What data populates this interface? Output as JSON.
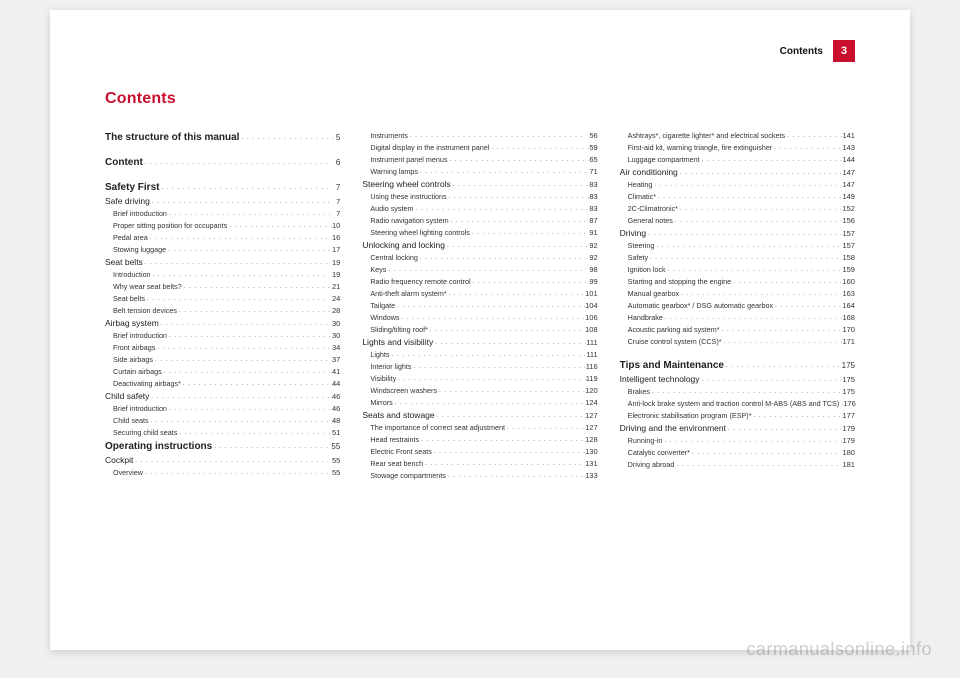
{
  "header": {
    "label": "Contents",
    "page_number": "3"
  },
  "title": "Contents",
  "watermark": "carmanualsonline.info",
  "dotfill": ". . . . . . . . . . . . . . . . . . . . . . . . . . . . . . . . . . . . . . . . . . . . . . . . . . . . . . . . . . . . . . . .",
  "toc": [
    {
      "level": 0,
      "label": "The structure of this manual",
      "page": "5"
    },
    {
      "blank": true
    },
    {
      "level": 0,
      "label": "Content",
      "page": "6"
    },
    {
      "blank": true
    },
    {
      "level": 0,
      "label": "Safety First",
      "page": "7"
    },
    {
      "level": 1,
      "label": "Safe driving",
      "page": "7"
    },
    {
      "level": 2,
      "label": "Brief introduction",
      "page": "7"
    },
    {
      "level": 2,
      "label": "Proper sitting position for occupants",
      "page": "10"
    },
    {
      "level": 2,
      "label": "Pedal area",
      "page": "16"
    },
    {
      "level": 2,
      "label": "Stowing luggage",
      "page": "17"
    },
    {
      "level": 1,
      "label": "Seat belts",
      "page": "19"
    },
    {
      "level": 2,
      "label": "Introduction",
      "page": "19"
    },
    {
      "level": 2,
      "label": "Why wear seat belts?",
      "page": "21"
    },
    {
      "level": 2,
      "label": "Seat belts",
      "page": "24"
    },
    {
      "level": 2,
      "label": "Belt tension devices",
      "page": "28"
    },
    {
      "level": 1,
      "label": "Airbag system",
      "page": "30"
    },
    {
      "level": 2,
      "label": "Brief introduction",
      "page": "30"
    },
    {
      "level": 2,
      "label": "Front airbags",
      "page": "34"
    },
    {
      "level": 2,
      "label": "Side airbags",
      "page": "37"
    },
    {
      "level": 2,
      "label": "Curtain airbags",
      "page": "41"
    },
    {
      "level": 2,
      "label": "Deactivating airbags*",
      "page": "44"
    },
    {
      "level": 1,
      "label": "Child safety",
      "page": "46"
    },
    {
      "level": 2,
      "label": "Brief introduction",
      "page": "46"
    },
    {
      "level": 2,
      "label": "Child seats",
      "page": "48"
    },
    {
      "level": 2,
      "label": "Securing child seats",
      "page": "51"
    },
    {
      "level": 0,
      "label": "Operating instructions",
      "page": "55"
    },
    {
      "level": 1,
      "label": "Cockpit",
      "page": "55"
    },
    {
      "level": 2,
      "label": "Overview",
      "page": "55"
    },
    {
      "level": 2,
      "label": "Instruments",
      "page": "56"
    },
    {
      "level": 2,
      "label": "Digital display in the instrument panel",
      "page": "59"
    },
    {
      "level": 2,
      "label": "Instrument panel menus",
      "page": "65"
    },
    {
      "level": 2,
      "label": "Warning lamps",
      "page": "71"
    },
    {
      "level": 1,
      "label": "Steering wheel controls",
      "page": "83"
    },
    {
      "level": 2,
      "label": "Using these instructions",
      "page": "83"
    },
    {
      "level": 2,
      "label": "Audio system",
      "page": "83"
    },
    {
      "level": 2,
      "label": "Radio navigation system",
      "page": "87"
    },
    {
      "level": 2,
      "label": "Steering wheel lighting controls",
      "page": "91"
    },
    {
      "level": 1,
      "label": "Unlocking and locking",
      "page": "92"
    },
    {
      "level": 2,
      "label": "Central locking",
      "page": "92"
    },
    {
      "level": 2,
      "label": "Keys",
      "page": "98"
    },
    {
      "level": 2,
      "label": "Radio frequency remote control",
      "page": "99"
    },
    {
      "level": 2,
      "label": "Anti-theft alarm system*",
      "page": "101"
    },
    {
      "level": 2,
      "label": "Tailgate",
      "page": "104"
    },
    {
      "level": 2,
      "label": "Windows",
      "page": "106"
    },
    {
      "level": 2,
      "label": "Sliding/tilting roof*",
      "page": "108"
    },
    {
      "level": 1,
      "label": "Lights and visibility",
      "page": "111"
    },
    {
      "level": 2,
      "label": "Lights",
      "page": "111"
    },
    {
      "level": 2,
      "label": "Interior lights",
      "page": "116"
    },
    {
      "level": 2,
      "label": "Visibility",
      "page": "119"
    },
    {
      "level": 2,
      "label": "Windscreen washers",
      "page": "120"
    },
    {
      "level": 2,
      "label": "Mirrors",
      "page": "124"
    },
    {
      "level": 1,
      "label": "Seats and stowage",
      "page": "127"
    },
    {
      "level": 2,
      "label": "The importance of correct seat adjustment",
      "page": "127"
    },
    {
      "level": 2,
      "label": "Head restraints",
      "page": "128"
    },
    {
      "level": 2,
      "label": "Electric Front seats",
      "page": "130"
    },
    {
      "level": 2,
      "label": "Rear seat bench",
      "page": "131"
    },
    {
      "level": 2,
      "label": "Stowage compartments",
      "page": "133"
    },
    {
      "level": 2,
      "label": "Ashtrays*, cigarette lighter* and electrical sockets",
      "page": "141"
    },
    {
      "level": 2,
      "label": "First-aid kit, warning triangle, fire extinguisher",
      "page": "143"
    },
    {
      "level": 2,
      "label": "Luggage compartment",
      "page": "144"
    },
    {
      "level": 1,
      "label": "Air conditioning",
      "page": "147"
    },
    {
      "level": 2,
      "label": "Heating",
      "page": "147"
    },
    {
      "level": 2,
      "label": "Climatic*",
      "page": "149"
    },
    {
      "level": 2,
      "label": "2C-Climatronic*",
      "page": "152"
    },
    {
      "level": 2,
      "label": "General notes",
      "page": "156"
    },
    {
      "level": 1,
      "label": "Driving",
      "page": "157"
    },
    {
      "level": 2,
      "label": "Steering",
      "page": "157"
    },
    {
      "level": 2,
      "label": "Safety",
      "page": "158"
    },
    {
      "level": 2,
      "label": "Ignition lock",
      "page": "159"
    },
    {
      "level": 2,
      "label": "Starting and stopping the engine",
      "page": "160"
    },
    {
      "level": 2,
      "label": "Manual gearbox",
      "page": "163"
    },
    {
      "level": 2,
      "label": "Automatic gearbox* / DSG automatic gearbox",
      "page": "164"
    },
    {
      "level": 2,
      "label": "Handbrake",
      "page": "168"
    },
    {
      "level": 2,
      "label": "Acoustic parking aid system*",
      "page": "170"
    },
    {
      "level": 2,
      "label": "Cruise control system (CCS)*",
      "page": "171"
    },
    {
      "blank": true
    },
    {
      "level": 0,
      "label": "Tips and Maintenance",
      "page": "175"
    },
    {
      "level": 1,
      "label": "Intelligent technology",
      "page": "175"
    },
    {
      "level": 2,
      "label": "Brakes",
      "page": "175"
    },
    {
      "level": 2,
      "label": "Anti-lock brake system and traction control M-ABS (ABS and TCS)",
      "page": "176"
    },
    {
      "level": 2,
      "label": "Electronic stabilisation program (ESP)*",
      "page": "177"
    },
    {
      "level": 1,
      "label": "Driving and the environment",
      "page": "179"
    },
    {
      "level": 2,
      "label": "Running-in",
      "page": "179"
    },
    {
      "level": 2,
      "label": "Catalytic converter*",
      "page": "180"
    },
    {
      "level": 2,
      "label": "Driving abroad",
      "page": "181"
    }
  ]
}
